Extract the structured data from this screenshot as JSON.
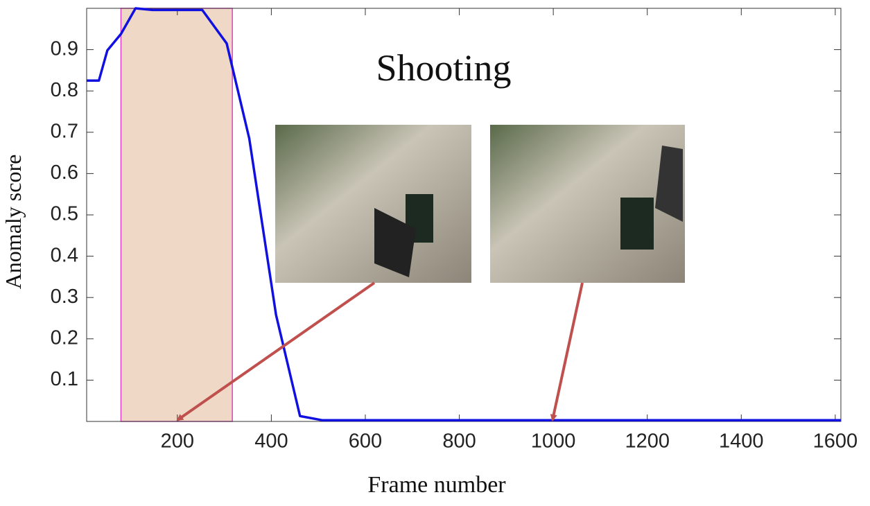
{
  "chart_data": {
    "type": "line",
    "annotation": "Shooting",
    "xlabel": "Frame number",
    "ylabel": "Anomaly score",
    "x": [
      7,
      33,
      51,
      80,
      111,
      147,
      253,
      305,
      353,
      410,
      461,
      508,
      1612
    ],
    "series": [
      {
        "color": "#1010e0",
        "values": [
          0.825,
          0.825,
          0.898,
          0.938,
          1.0,
          0.996,
          0.996,
          0.915,
          0.685,
          0.258,
          0.013,
          0.003,
          0.003
        ]
      }
    ],
    "highlight": {
      "x": [
        80,
        317
      ],
      "color": "#efd9c6",
      "edge_color": "#e040c0"
    },
    "xlim": [
      7,
      1612
    ],
    "ylim": [
      0,
      1
    ],
    "xticks": [
      200,
      400,
      600,
      800,
      1000,
      1200,
      1400,
      1600
    ],
    "yticks": [
      0.1,
      0.2,
      0.3,
      0.4,
      0.5,
      0.6,
      0.7,
      0.8,
      0.9
    ],
    "grid": false
  }
}
